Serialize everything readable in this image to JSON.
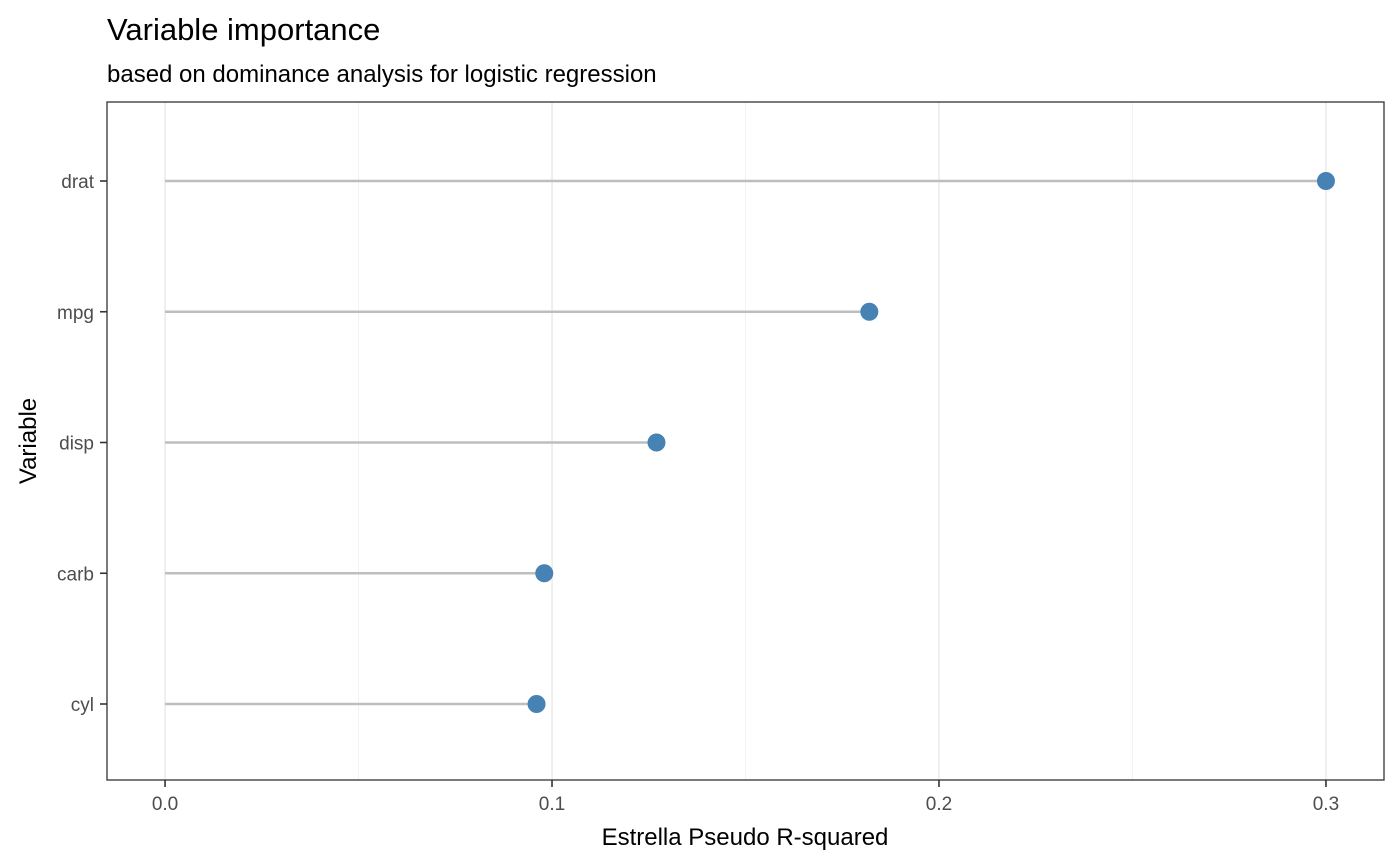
{
  "chart_data": {
    "type": "lollipop",
    "title": "Variable importance",
    "subtitle": "based on dominance analysis for logistic regression",
    "xlabel": "Estrella Pseudo R-squared",
    "ylabel": "Variable",
    "categories": [
      "drat",
      "mpg",
      "disp",
      "carb",
      "cyl"
    ],
    "values": [
      0.3,
      0.182,
      0.127,
      0.098,
      0.096
    ],
    "xlim": [
      -0.015,
      0.315
    ],
    "x_ticks": [
      0.0,
      0.1,
      0.2,
      0.3
    ],
    "x_tick_labels": [
      "0.0",
      "0.1",
      "0.2",
      "0.3"
    ],
    "grid": true,
    "colors": {
      "point": "#4682b4",
      "stem": "#bebebe"
    }
  }
}
